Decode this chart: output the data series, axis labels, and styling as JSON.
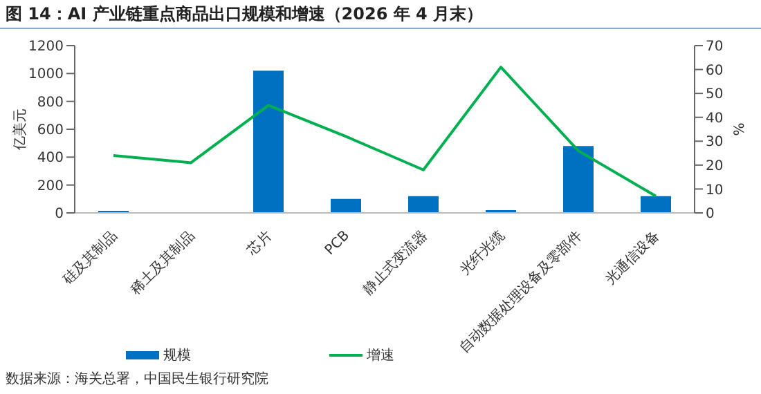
{
  "chart_data": {
    "type": "bar",
    "title": "图 14：AI 产业链重点商品出口规模和增速（2026 年 4 月末）",
    "categories": [
      "硅及其制品",
      "稀土及其制品",
      "芯片",
      "PCB",
      "静止式变流器",
      "光纤光缆",
      "自动数据处理设备及零部件",
      "光通信设备"
    ],
    "series": [
      {
        "name": "规模",
        "color": "#0070c0",
        "values": [
          15,
          0,
          1020,
          100,
          120,
          20,
          480,
          120
        ]
      },
      {
        "name": "增速",
        "type": "line",
        "axis": "y2",
        "color": "#00b050",
        "marker": "none",
        "values": [
          24,
          21,
          45,
          32,
          18,
          61,
          26,
          7
        ]
      }
    ],
    "ylabel": "亿美元",
    "y2label": "%",
    "ylim": [
      0,
      1200
    ],
    "yticks": [
      0,
      200,
      400,
      600,
      800,
      1000,
      1200
    ],
    "y2lim": [
      0,
      70
    ],
    "y2ticks": [
      0,
      10,
      20,
      30,
      40,
      50,
      60,
      70
    ],
    "grid": false,
    "legend": "bottom",
    "annotations": [
      "数据来源：海关总署，中国民生银行研究院"
    ]
  }
}
